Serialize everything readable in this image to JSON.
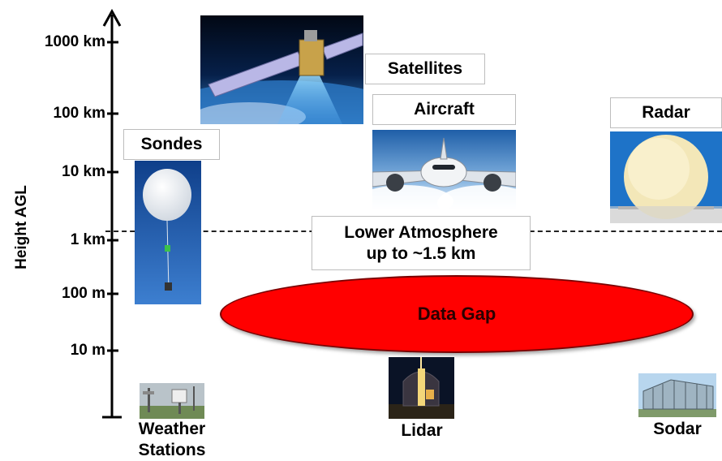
{
  "axis": {
    "title": "Height AGL",
    "ticks": [
      {
        "label": "1000 km"
      },
      {
        "label": "100 km"
      },
      {
        "label": "10 km"
      },
      {
        "label": "1 km"
      },
      {
        "label": "100 m"
      },
      {
        "label": "10 m"
      }
    ]
  },
  "labels": {
    "satellites": "Satellites",
    "aircraft": "Aircraft",
    "radar": "Radar",
    "sondes": "Sondes",
    "lower_atmosphere_line1": "Lower Atmosphere",
    "lower_atmosphere_line2": "up to ~1.5 km",
    "data_gap": "Data Gap",
    "weather_line1": "Weather",
    "weather_line2": "Stations",
    "lidar": "Lidar",
    "sodar": "Sodar"
  },
  "colors": {
    "data_gap_fill": "#ff0000",
    "axis": "#000000"
  },
  "icons": {
    "satellite": "satellite-photo",
    "aircraft": "airplane-photo",
    "radar": "radar-dome-photo",
    "sonde": "weather-balloon-photo",
    "weather_station": "weather-station-photo",
    "lidar": "lidar-observatory-photo",
    "sodar": "sodar-building-photo"
  }
}
